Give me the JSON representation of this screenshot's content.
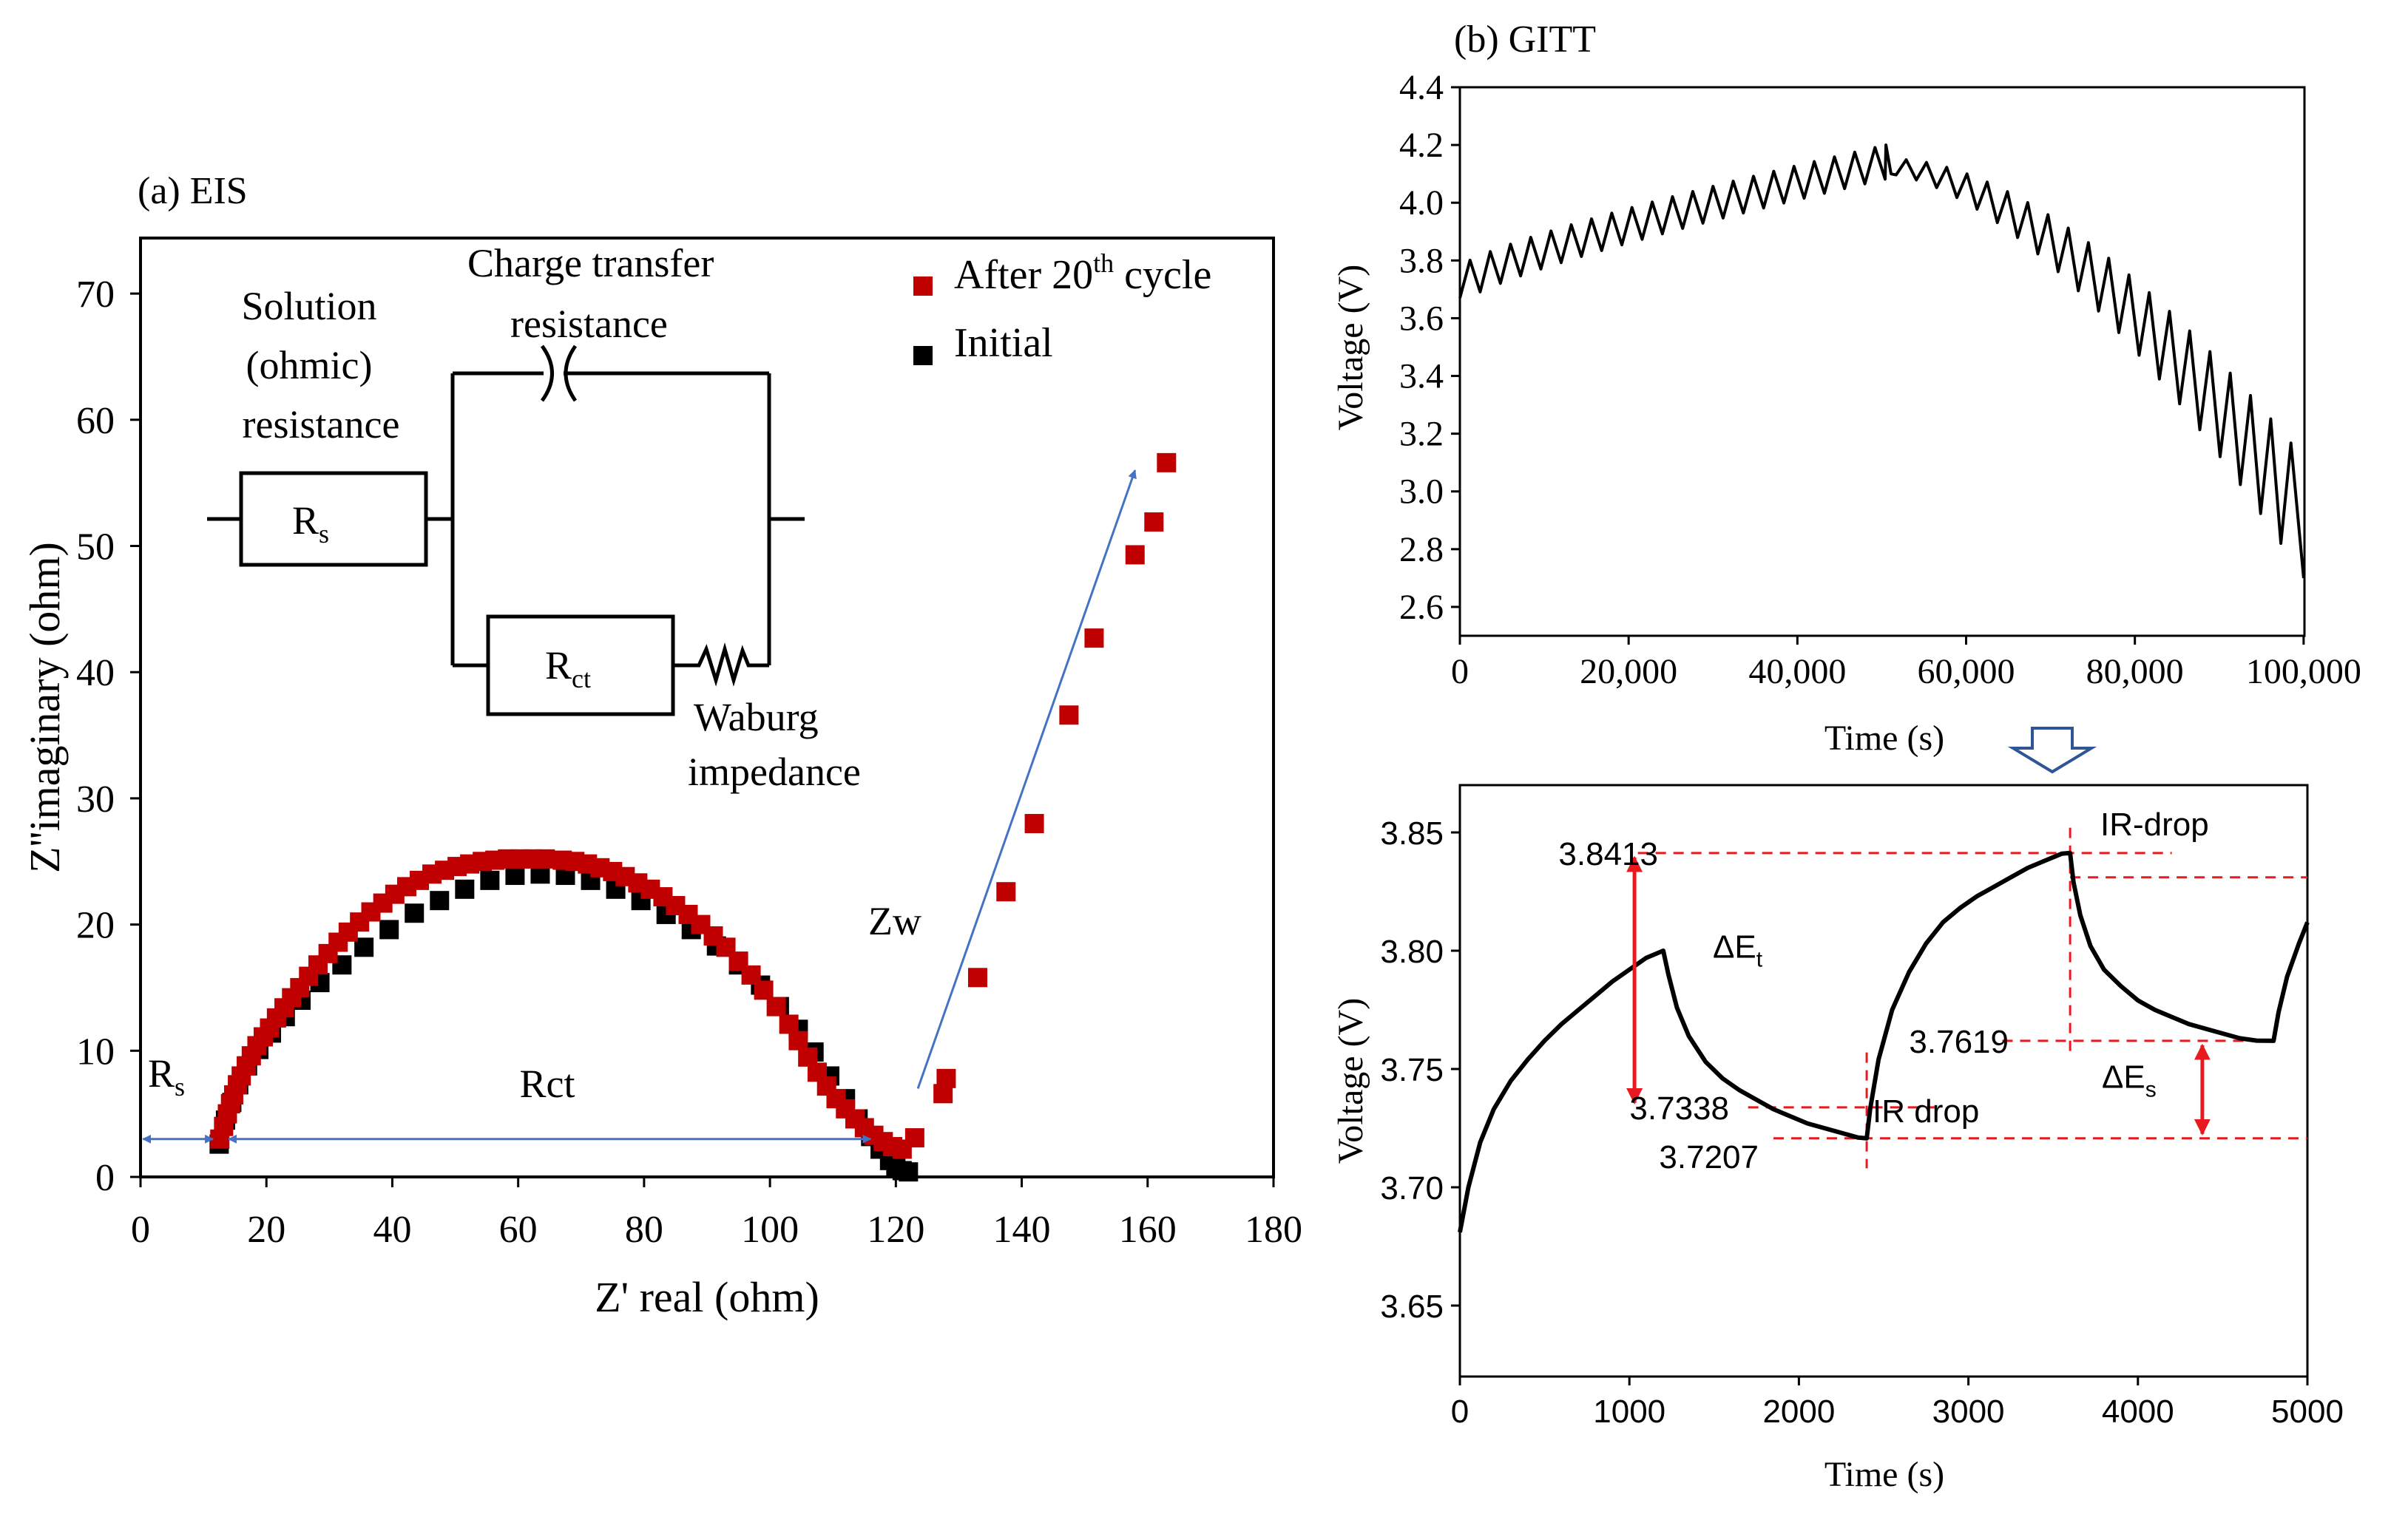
{
  "chart_data": [
    {
      "id": "eis",
      "type": "scatter",
      "panel_label": "(a) EIS",
      "xlabel": "Z' real (ohm)",
      "ylabel": "Z''imaginary (ohm)",
      "xlim": [
        0,
        180
      ],
      "ylim": [
        0,
        75
      ],
      "xticks": [
        0,
        20,
        40,
        60,
        80,
        100,
        120,
        140,
        160,
        180
      ],
      "yticks": [
        0,
        10,
        20,
        30,
        40,
        50,
        60,
        70
      ],
      "legend_position": "top-right",
      "legend": [
        {
          "name": "After 20",
          "sup": "th",
          "suffix": " cycle",
          "color": "#c00000"
        },
        {
          "name": "Initial",
          "color": "#000000"
        }
      ],
      "series": [
        {
          "name": "Initial",
          "color": "#000000",
          "x": [
            12.5,
            13.5,
            14.5,
            15.6,
            17,
            18.8,
            20.8,
            23,
            25.5,
            28.5,
            32,
            35.5,
            39.5,
            43.5,
            47.5,
            51.5,
            55.5,
            59.5,
            63.5,
            67.5,
            71.5,
            75.5,
            79.5,
            83.5,
            87.5,
            91.5,
            95,
            98.5,
            101.5,
            104.5,
            107,
            109.5,
            112,
            114,
            116,
            117.5,
            119,
            120,
            121,
            122
          ],
          "y": [
            2.6,
            4.5,
            5.9,
            7.3,
            8.8,
            10.1,
            11.4,
            12.7,
            14.0,
            15.4,
            16.8,
            18.2,
            19.6,
            20.9,
            21.9,
            22.8,
            23.5,
            23.9,
            24.0,
            23.9,
            23.5,
            22.8,
            21.9,
            20.8,
            19.6,
            18.3,
            16.8,
            15.2,
            13.5,
            11.7,
            9.9,
            8.0,
            6.2,
            4.6,
            3.2,
            2.2,
            1.3,
            0.8,
            0.5,
            0.4
          ]
        },
        {
          "name": "After 20th cycle",
          "color": "#c00000",
          "x": [
            12.6,
            13.2,
            13.8,
            14.3,
            14.8,
            15.4,
            16,
            16.8,
            17.6,
            18.5,
            19.5,
            20.5,
            21.6,
            22.8,
            24,
            25.3,
            26.7,
            28.2,
            29.8,
            31.4,
            33,
            34.8,
            36.6,
            38.5,
            40.4,
            42.3,
            44.3,
            46.3,
            48.3,
            50.3,
            52.3,
            54.3,
            56.3,
            58.3,
            60.3,
            62.3,
            64.3,
            67,
            69,
            71,
            73,
            75,
            77,
            79,
            81,
            83,
            85,
            87,
            89,
            91,
            93,
            95,
            97,
            99,
            101,
            103,
            104.5,
            106,
            107.5,
            109,
            110.5,
            112,
            113.5,
            115,
            116.5,
            118,
            119.5,
            121,
            123,
            127.5,
            128,
            133,
            137.5,
            142,
            147.5,
            151.5,
            158,
            161,
            163
          ],
          "y": [
            3.0,
            4.0,
            5.0,
            5.8,
            6.5,
            7.3,
            8.0,
            8.8,
            9.6,
            10.4,
            11.1,
            11.8,
            12.6,
            13.4,
            14.2,
            15.0,
            15.9,
            16.8,
            17.7,
            18.6,
            19.4,
            20.2,
            21.0,
            21.7,
            22.4,
            23.0,
            23.5,
            24.0,
            24.3,
            24.6,
            24.8,
            25.0,
            25.1,
            25.2,
            25.2,
            25.2,
            25.2,
            25.1,
            25.0,
            24.8,
            24.5,
            24.2,
            23.8,
            23.3,
            22.8,
            22.2,
            21.5,
            20.8,
            20.0,
            19.1,
            18.2,
            17.1,
            16.0,
            14.8,
            13.5,
            12.1,
            10.8,
            9.5,
            8.3,
            7.2,
            6.2,
            5.4,
            4.6,
            3.9,
            3.3,
            2.8,
            2.4,
            2.2,
            3.1,
            6.6,
            7.8,
            15.8,
            22.6,
            28.0,
            36.6,
            42.7,
            49.3,
            51.9,
            56.6
          ]
        }
      ],
      "annotations": {
        "rs_label": "R",
        "rs_sub": "s",
        "rct_label": "Rct",
        "zw_label": "Zw"
      },
      "circuit": {
        "solution_l1": "Solution",
        "solution_l2": "(ohmic)",
        "solution_l3": "resistance",
        "ct_l1": "Charge  transfer",
        "ct_l2": "resistance",
        "rs_main": "R",
        "rs_sub": "s",
        "rct_main": "R",
        "rct_sub": "ct",
        "waburg_l1": "Waburg",
        "waburg_l2": "impedance"
      }
    },
    {
      "id": "gitt",
      "type": "line",
      "panel_label": "(b) GITT",
      "xlabel": "Time (s)",
      "ylabel": "Voltage (V)",
      "xlim": [
        0,
        100000
      ],
      "ylim": [
        2.5,
        4.4
      ],
      "xticks": [
        0,
        20000,
        40000,
        60000,
        80000,
        100000
      ],
      "xtick_labels": [
        "0",
        "20,000",
        "40,000",
        "60,000",
        "80,000",
        "100,000"
      ],
      "yticks": [
        2.6,
        2.8,
        3.0,
        3.2,
        3.4,
        3.6,
        3.8,
        4.0,
        4.2,
        4.4
      ],
      "ytick_labels": [
        "2.6",
        "2.8",
        "3.0",
        "3.2",
        "3.4",
        "3.6",
        "3.8",
        "4.0",
        "4.2",
        "4.4"
      ],
      "pulse_period_s": 2400,
      "charge_end_s": 50500,
      "charge_upper_start": 3.78,
      "charge_upper_end": 4.2,
      "charge_rest_drop": 0.11,
      "discharge_lower_start": 4.1,
      "discharge_lower_end": 2.7,
      "discharge_rest_rise": 0.32,
      "color": "#000000"
    },
    {
      "id": "gitt-zoom",
      "type": "line",
      "xlabel": "Time (s)",
      "ylabel": "Voltage (V)",
      "xlim": [
        0,
        5000
      ],
      "ylim": [
        3.62,
        3.87
      ],
      "xticks": [
        0,
        1000,
        2000,
        3000,
        4000,
        5000
      ],
      "yticks": [
        3.65,
        3.7,
        3.75,
        3.8,
        3.85
      ],
      "ytick_labels": [
        "3.65",
        "3.70",
        "3.75",
        "3.80",
        "3.85"
      ],
      "x": [
        0,
        50,
        120,
        200,
        300,
        400,
        500,
        600,
        700,
        800,
        900,
        1000,
        1100,
        1200,
        1230,
        1280,
        1350,
        1450,
        1550,
        1650,
        1750,
        1850,
        1950,
        2050,
        2150,
        2250,
        2350,
        2400,
        2420,
        2470,
        2550,
        2650,
        2750,
        2850,
        2950,
        3050,
        3150,
        3250,
        3350,
        3450,
        3550,
        3600,
        3620,
        3660,
        3720,
        3800,
        3900,
        4000,
        4100,
        4200,
        4300,
        4400,
        4500,
        4600,
        4700,
        4800,
        4830,
        4880,
        4950,
        5000
      ],
      "y": [
        3.681,
        3.7,
        3.719,
        3.733,
        3.745,
        3.754,
        3.762,
        3.769,
        3.775,
        3.781,
        3.787,
        3.792,
        3.797,
        3.8,
        3.79,
        3.776,
        3.764,
        3.753,
        3.746,
        3.741,
        3.737,
        3.733,
        3.73,
        3.727,
        3.725,
        3.723,
        3.721,
        3.7207,
        3.733,
        3.754,
        3.775,
        3.791,
        3.803,
        3.812,
        3.818,
        3.823,
        3.827,
        3.831,
        3.835,
        3.838,
        3.841,
        3.8413,
        3.829,
        3.815,
        3.802,
        3.792,
        3.785,
        3.779,
        3.775,
        3.772,
        3.769,
        3.767,
        3.765,
        3.763,
        3.762,
        3.7619,
        3.774,
        3.789,
        3.803,
        3.812
      ],
      "levels": [
        {
          "label": "3.8413",
          "value": 3.8413
        },
        {
          "label": "3.7338",
          "value": 3.7338
        },
        {
          "label": "3.7207",
          "value": 3.7207
        },
        {
          "label": "3.7619",
          "value": 3.7619
        }
      ],
      "ir_drop_top_level": 3.831,
      "annotations": {
        "ir_drop_top": "IR-drop",
        "ir_drop_mid": "IR drop",
        "delta_t_main": "ΔE",
        "delta_t_sub": "t",
        "delta_s_main": "ΔE",
        "delta_s_sub": "s"
      },
      "color": "#000000",
      "guide_color": "#e8191f"
    }
  ]
}
